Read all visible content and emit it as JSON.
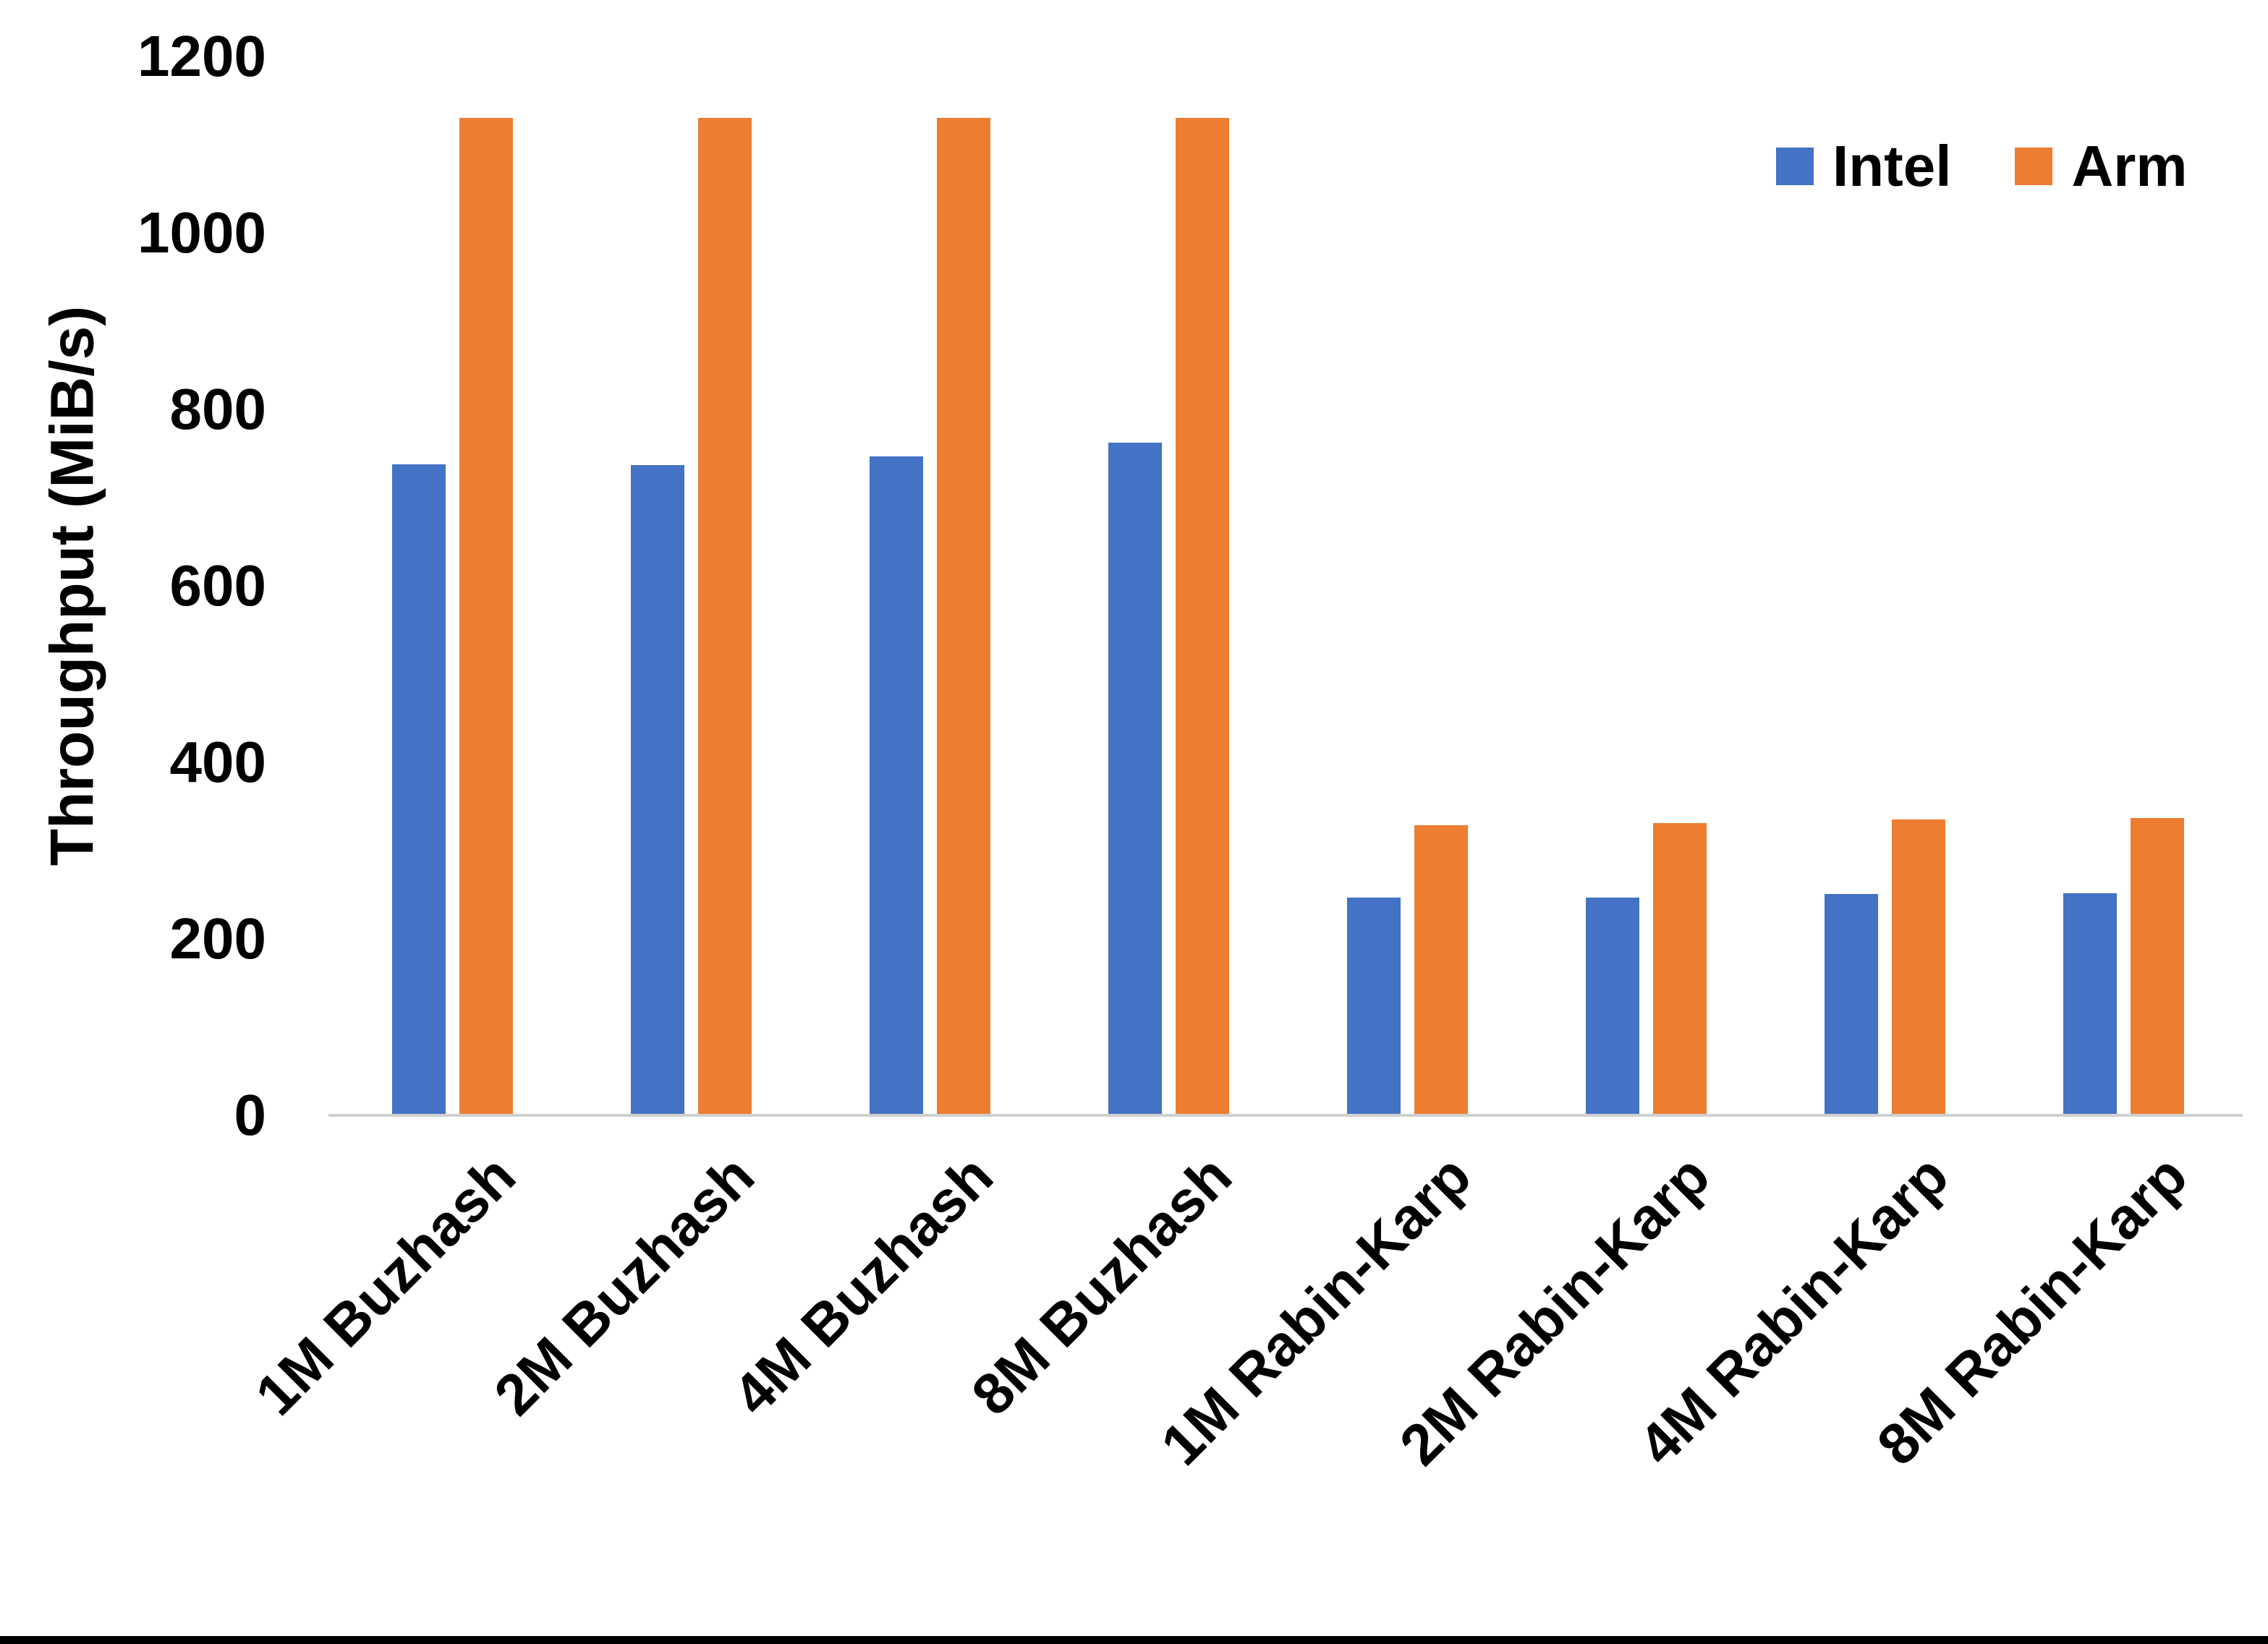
{
  "figure": {
    "background": "#ffffff",
    "bottom_border_color": "#000000",
    "axis_line_color": "#d0d0d0",
    "text_color": "#000000"
  },
  "chart_data": {
    "type": "bar",
    "title": "",
    "xlabel": "",
    "ylabel": "Throughput (MiB/s)",
    "ylim": [
      0,
      1200
    ],
    "yticks": [
      0,
      200,
      400,
      600,
      800,
      1000,
      1200
    ],
    "grid": false,
    "legend_position": "top-right",
    "categories": [
      "1M Buzhash",
      "2M Buzhash",
      "4M Buzhash",
      "8M Buzhash",
      "1M Rabin-Karp",
      "2M Rabin-Karp",
      "4M Rabin-Karp",
      "8M Rabin-Karp"
    ],
    "series": [
      {
        "name": "Intel",
        "color": "#4472C4",
        "values": [
          738,
          737,
          747,
          762,
          247,
          247,
          251,
          252
        ]
      },
      {
        "name": "Arm",
        "color": "#ED7D31",
        "values": [
          1130,
          1130,
          1130,
          1130,
          329,
          331,
          335,
          337
        ]
      }
    ]
  }
}
